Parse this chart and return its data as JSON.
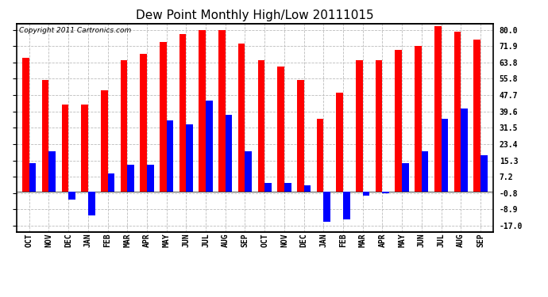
{
  "title": "Dew Point Monthly High/Low 20111015",
  "copyright": "Copyright 2011 Cartronics.com",
  "categories": [
    "OCT",
    "NOV",
    "DEC",
    "JAN",
    "FEB",
    "MAR",
    "APR",
    "MAY",
    "JUN",
    "JUL",
    "AUG",
    "SEP",
    "OCT",
    "NOV",
    "DEC",
    "JAN",
    "FEB",
    "MAR",
    "APR",
    "MAY",
    "JUN",
    "JUL",
    "AUG",
    "SEP"
  ],
  "highs": [
    66,
    55,
    43,
    43,
    50,
    65,
    68,
    74,
    78,
    80,
    80,
    73,
    65,
    62,
    55,
    36,
    49,
    65,
    65,
    70,
    72,
    82,
    79,
    75
  ],
  "lows": [
    14,
    20,
    -4,
    -12,
    9,
    13,
    13,
    35,
    33,
    45,
    38,
    20,
    4,
    4,
    3,
    -15,
    -14,
    -2,
    -1,
    14,
    20,
    36,
    41,
    18
  ],
  "high_color": "#FF0000",
  "low_color": "#0000FF",
  "bg_color": "#FFFFFF",
  "grid_color": "#BBBBBB",
  "yticks": [
    80.0,
    71.9,
    63.8,
    55.8,
    47.7,
    39.6,
    31.5,
    23.4,
    15.3,
    7.2,
    -0.8,
    -8.9,
    -17.0
  ],
  "ylim": [
    -20.0,
    83.0
  ],
  "bar_width": 0.35,
  "title_fontsize": 11,
  "tick_fontsize": 7,
  "copyright_fontsize": 6.5
}
